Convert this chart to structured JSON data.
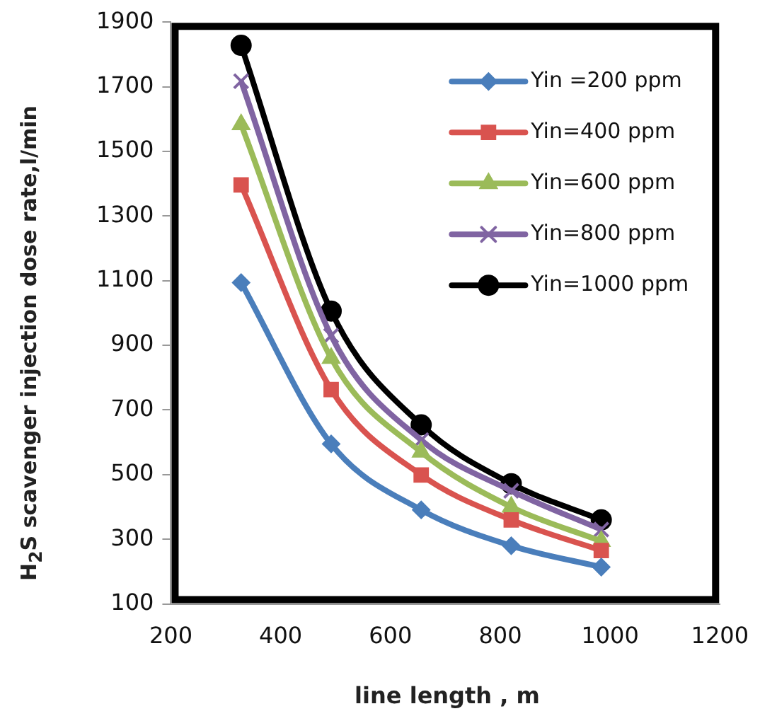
{
  "chart_data": {
    "type": "line",
    "xlabel": "line length , m",
    "ylabel": "H$_{2}$S scavenger injection dose rate,l/min",
    "x": [
      328,
      492,
      656,
      820,
      984
    ],
    "xlim": [
      200,
      1200
    ],
    "xticks": [
      200,
      400,
      600,
      800,
      1000,
      1200
    ],
    "ylim": [
      100,
      1900
    ],
    "yticks": [
      100,
      300,
      500,
      700,
      900,
      1100,
      1300,
      1500,
      1700,
      1900
    ],
    "grid": false,
    "legend": "top right",
    "series": [
      {
        "name": "Yin =200 ppm",
        "color": "#4a7ebb",
        "marker": "diamond",
        "values": [
          1094,
          595,
          391,
          280,
          214
        ]
      },
      {
        "name": "Yin=400 ppm",
        "color": "#d9534f",
        "marker": "square",
        "values": [
          1396,
          763,
          499,
          360,
          265
        ]
      },
      {
        "name": "Yin=600 ppm",
        "color": "#9bbb59",
        "marker": "triangle",
        "values": [
          1583,
          860,
          570,
          400,
          294
        ]
      },
      {
        "name": "Yin=800 ppm",
        "color": "#8064a2",
        "marker": "cross",
        "values": [
          1717,
          930,
          607,
          450,
          330
        ]
      },
      {
        "name": "Yin=1000 ppm",
        "color": "#000000",
        "marker": "circle",
        "values": [
          1828,
          1006,
          654,
          472,
          360
        ]
      }
    ]
  }
}
